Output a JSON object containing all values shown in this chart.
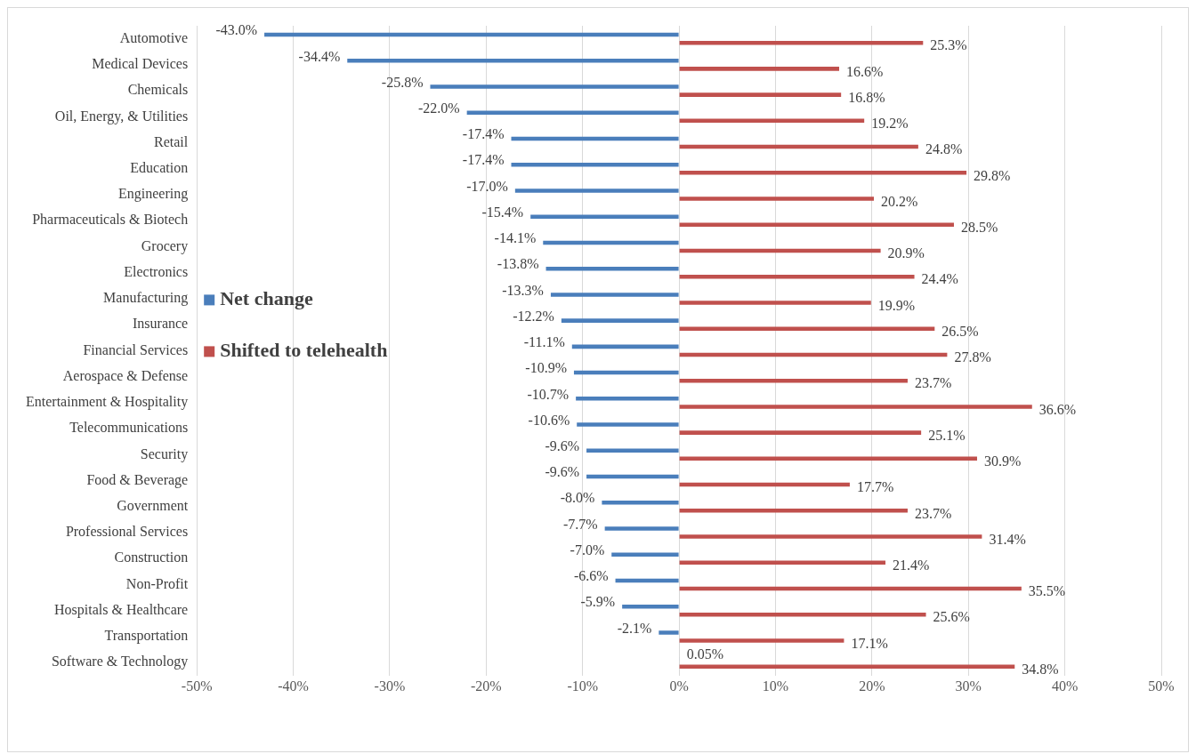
{
  "chart_data": {
    "type": "bar",
    "orientation": "horizontal",
    "categories": [
      "Automotive",
      "Medical Devices",
      "Chemicals",
      "Oil, Energy, & Utilities",
      "Retail",
      "Education",
      "Engineering",
      "Pharmaceuticals & Biotech",
      "Grocery",
      "Electronics",
      "Manufacturing",
      "Insurance",
      "Financial Services",
      "Aerospace & Defense",
      "Entertainment & Hospitality",
      "Telecommunications",
      "Security",
      "Food & Beverage",
      "Government",
      "Professional Services",
      "Construction",
      "Non-Profit",
      "Hospitals & Healthcare",
      "Transportation",
      "Software & Technology"
    ],
    "series": [
      {
        "name": "Net change",
        "color": "#4a7ebb",
        "values": [
          -43.0,
          -34.4,
          -25.8,
          -22.0,
          -17.4,
          -17.4,
          -17.0,
          -15.4,
          -14.1,
          -13.8,
          -13.3,
          -12.2,
          -11.1,
          -10.9,
          -10.7,
          -10.6,
          -9.6,
          -9.6,
          -8.0,
          -7.7,
          -7.0,
          -6.6,
          -5.9,
          -2.1,
          0.05
        ],
        "value_labels": [
          "-43.0%",
          "-34.4%",
          "-25.8%",
          "-22.0%",
          "-17.4%",
          "-17.4%",
          "-17.0%",
          "-15.4%",
          "-14.1%",
          "-13.8%",
          "-13.3%",
          "-12.2%",
          "-11.1%",
          "-10.9%",
          "-10.7%",
          "-10.6%",
          "-9.6%",
          "-9.6%",
          "-8.0%",
          "-7.7%",
          "-7.0%",
          "-6.6%",
          "-5.9%",
          "-2.1%",
          "0.05%"
        ]
      },
      {
        "name": "Shifted to telehealth",
        "color": "#c0504d",
        "values": [
          25.3,
          16.6,
          16.8,
          19.2,
          24.8,
          29.8,
          20.2,
          28.5,
          20.9,
          24.4,
          19.9,
          26.5,
          27.8,
          23.7,
          36.6,
          25.1,
          30.9,
          17.7,
          23.7,
          31.4,
          21.4,
          35.5,
          25.6,
          17.1,
          34.8
        ],
        "value_labels": [
          "25.3%",
          "16.6%",
          "16.8%",
          "19.2%",
          "24.8%",
          "29.8%",
          "20.2%",
          "28.5%",
          "20.9%",
          "24.4%",
          "19.9%",
          "26.5%",
          "27.8%",
          "23.7%",
          "36.6%",
          "25.1%",
          "30.9%",
          "17.7%",
          "23.7%",
          "31.4%",
          "21.4%",
          "35.5%",
          "25.6%",
          "17.1%",
          "34.8%"
        ]
      }
    ],
    "xlim": [
      -50,
      50
    ],
    "xticks": [
      {
        "value": -50,
        "label": "-50%"
      },
      {
        "value": -40,
        "label": "-40%"
      },
      {
        "value": -30,
        "label": "-30%"
      },
      {
        "value": -20,
        "label": "-20%"
      },
      {
        "value": -10,
        "label": "-10%"
      },
      {
        "value": 0,
        "label": "0%"
      },
      {
        "value": 10,
        "label": "10%"
      },
      {
        "value": 20,
        "label": "20%"
      },
      {
        "value": 30,
        "label": "30%"
      },
      {
        "value": 40,
        "label": "40%"
      },
      {
        "value": 50,
        "label": "50%"
      }
    ],
    "grid": "x",
    "legend": "left"
  }
}
